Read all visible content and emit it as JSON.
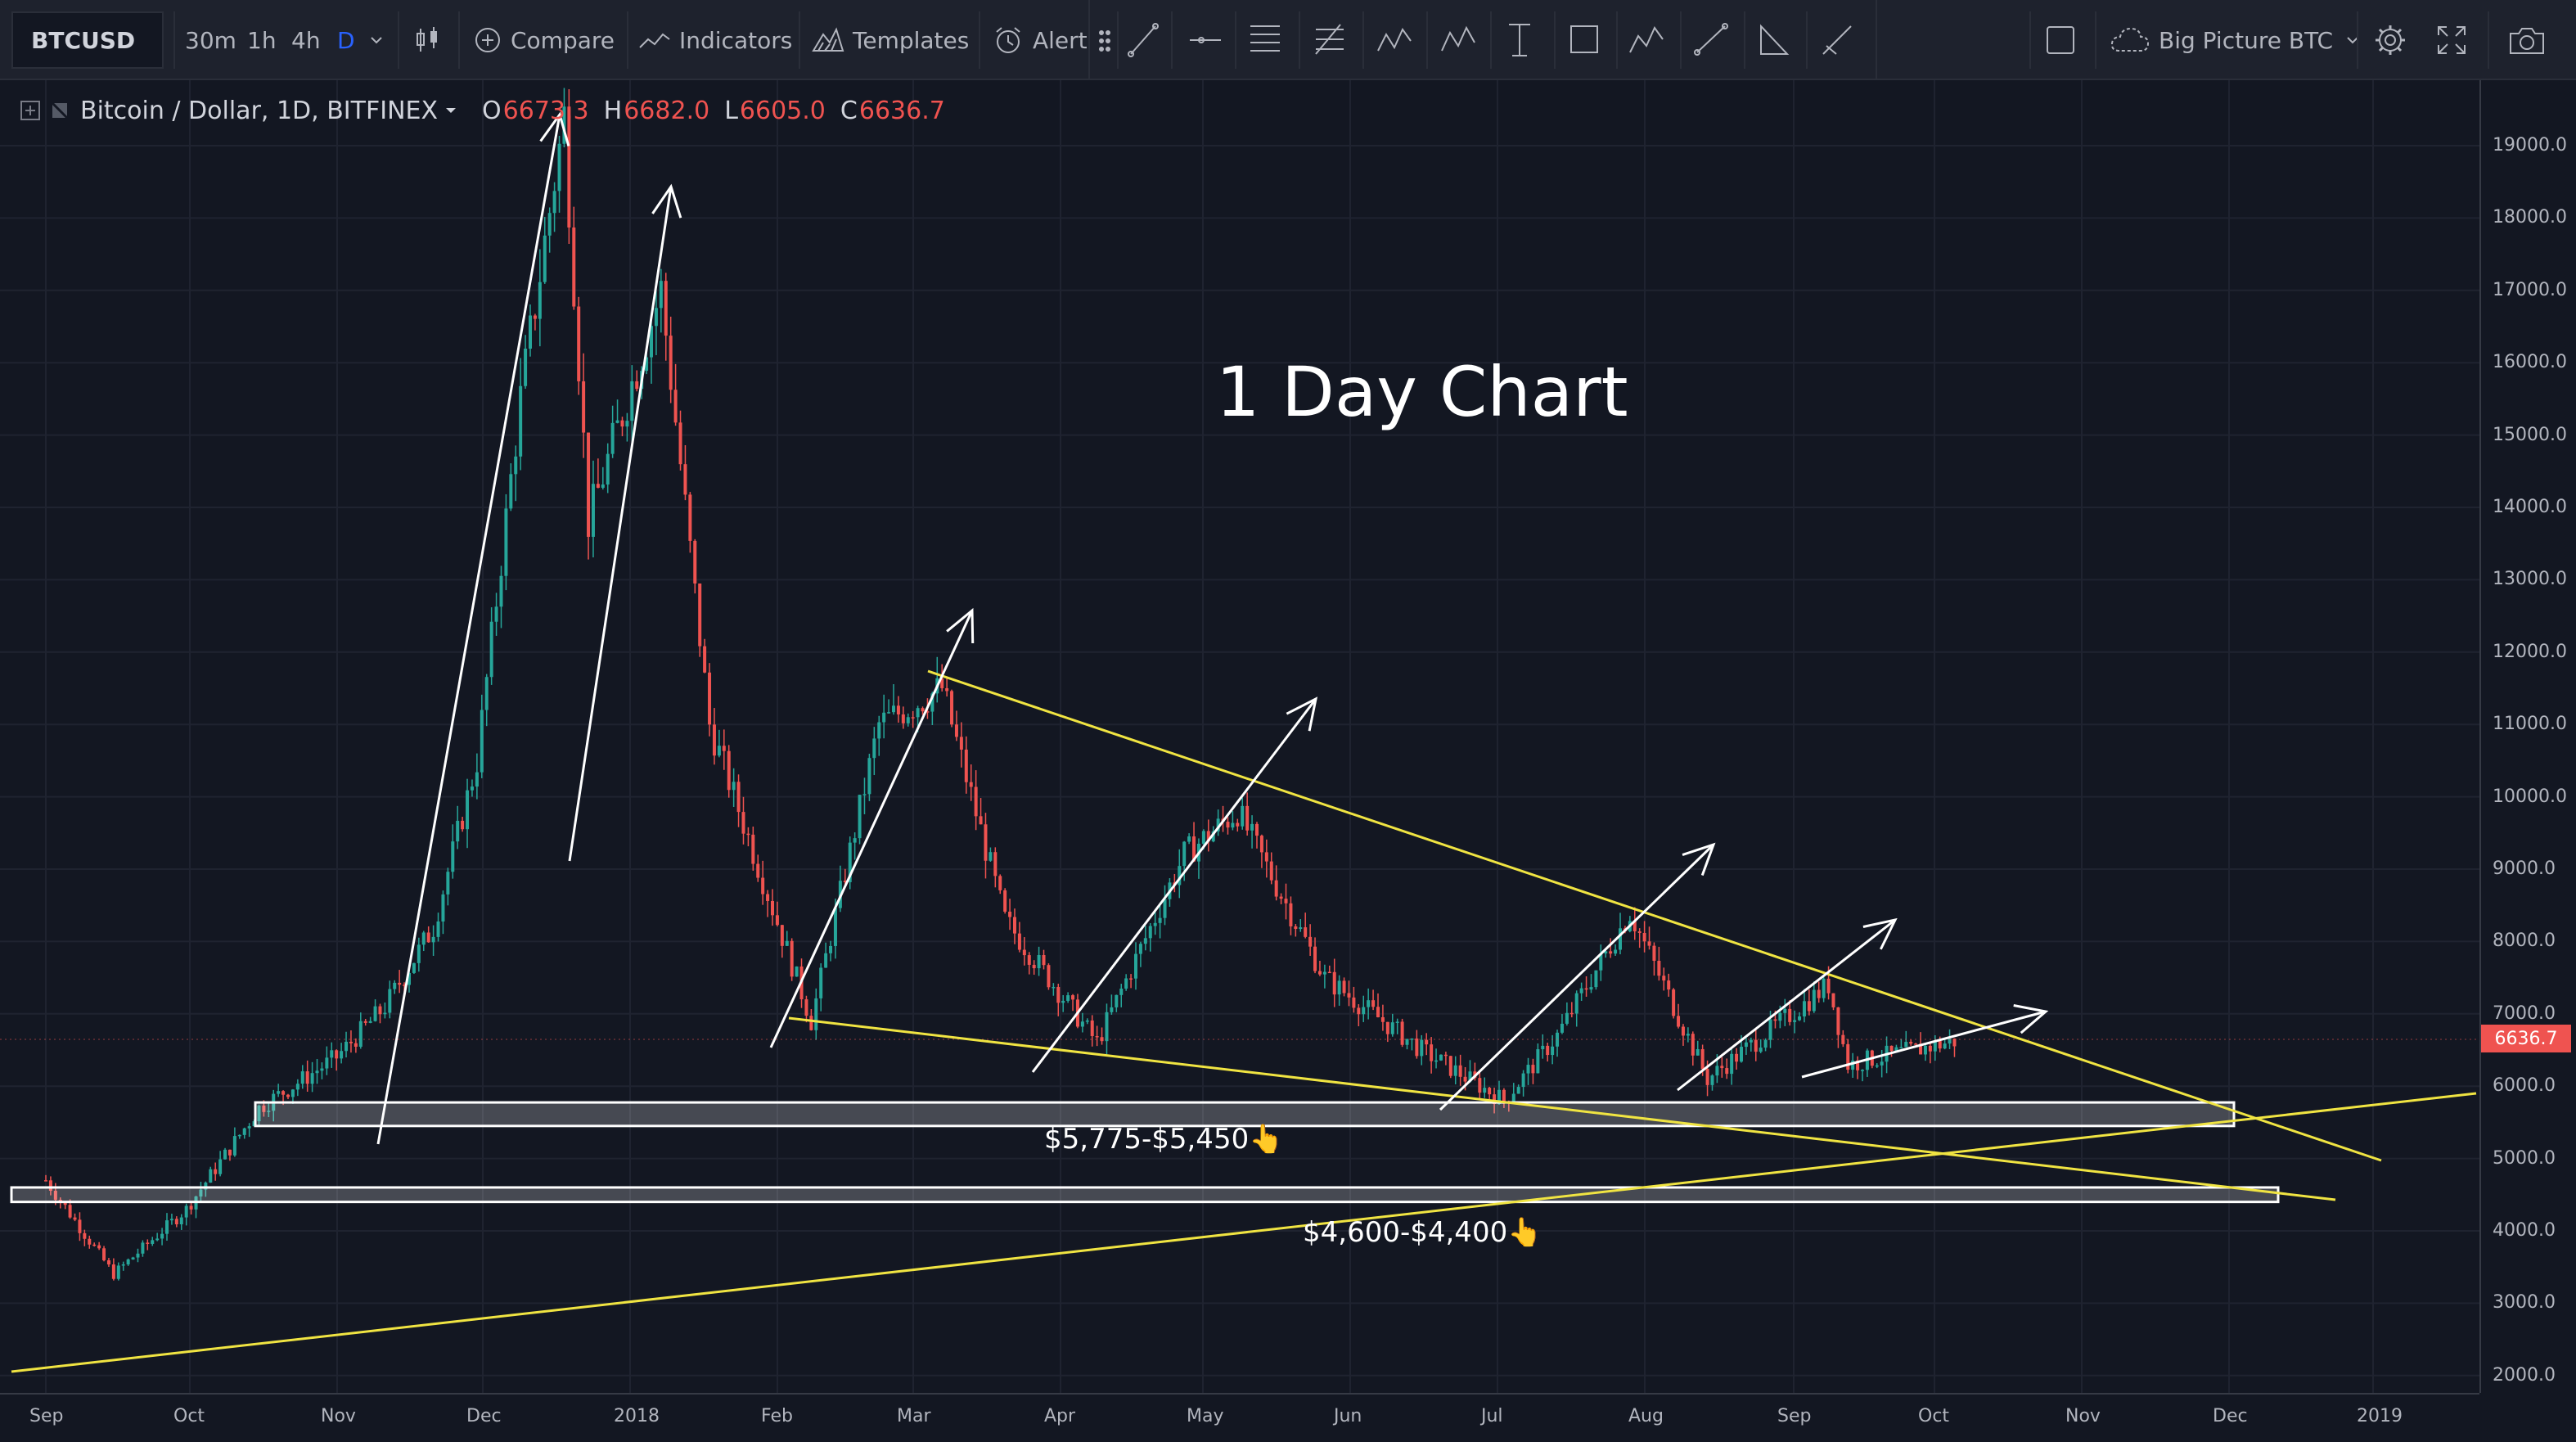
{
  "toolbar": {
    "symbol": "BTCUSD",
    "intervals": [
      "30m",
      "1h",
      "4h",
      "D"
    ],
    "active_interval": "D",
    "compare_label": "Compare",
    "indicators_label": "Indicators",
    "templates_label": "Templates",
    "alert_label": "Alert",
    "layout_name": "Big Picture BTC"
  },
  "legend": {
    "title": "Bitcoin / Dollar, 1D, BITFINEX",
    "open_label": "O",
    "open": "6673.3",
    "high_label": "H",
    "high": "6682.0",
    "low_label": "L",
    "low": "6605.0",
    "close_label": "C",
    "close": "6636.7"
  },
  "annotations": {
    "title": "1 Day Chart",
    "zone1_label": "$5,775-$5,450👆",
    "zone2_label": "$4,600-$4,400👆"
  },
  "price_axis": {
    "ticks": [
      "19000.0",
      "18000.0",
      "17000.0",
      "16000.0",
      "15000.0",
      "14000.0",
      "13000.0",
      "12000.0",
      "11000.0",
      "10000.0",
      "9000.0",
      "8000.0",
      "7000.0",
      "6000.0",
      "5000.0",
      "4000.0",
      "3000.0",
      "2000.0"
    ],
    "current_price": "6636.7"
  },
  "time_axis": {
    "ticks": [
      "Sep",
      "Oct",
      "Nov",
      "Dec",
      "2018",
      "Feb",
      "Mar",
      "Apr",
      "May",
      "Jun",
      "Jul",
      "Aug",
      "Sep",
      "Oct",
      "Nov",
      "Dec",
      "2019"
    ]
  },
  "colors": {
    "background": "#131722",
    "up_candle": "#26a69a",
    "down_candle": "#ef5350",
    "trendline": "#f0e442",
    "arrows": "#ffffff",
    "price_tag": "#ef5350"
  },
  "chart_data": {
    "type": "candlestick",
    "symbol": "BTCUSD",
    "interval": "1D",
    "ylim": [
      2000,
      19600
    ],
    "approx_close_series": [
      [
        "2017-09-01",
        4700
      ],
      [
        "2017-09-15",
        3400
      ],
      [
        "2017-09-30",
        4300
      ],
      [
        "2017-10-15",
        5700
      ],
      [
        "2017-10-31",
        6400
      ],
      [
        "2017-11-10",
        7100
      ],
      [
        "2017-11-20",
        8200
      ],
      [
        "2017-11-29",
        10500
      ],
      [
        "2017-12-08",
        15500
      ],
      [
        "2017-12-17",
        19400
      ],
      [
        "2017-12-22",
        13800
      ],
      [
        "2018-01-06",
        17000
      ],
      [
        "2018-01-16",
        11000
      ],
      [
        "2018-02-06",
        6900
      ],
      [
        "2018-02-20",
        11000
      ],
      [
        "2018-03-05",
        11500
      ],
      [
        "2018-03-18",
        8300
      ],
      [
        "2018-04-06",
        6600
      ],
      [
        "2018-04-24",
        9200
      ],
      [
        "2018-05-05",
        9800
      ],
      [
        "2018-05-23",
        7500
      ],
      [
        "2018-06-12",
        6500
      ],
      [
        "2018-06-29",
        5800
      ],
      [
        "2018-07-10",
        6700
      ],
      [
        "2018-07-25",
        8400
      ],
      [
        "2018-08-10",
        6100
      ],
      [
        "2018-09-04",
        7400
      ],
      [
        "2018-09-08",
        6300
      ],
      [
        "2018-10-01",
        6636.7
      ]
    ],
    "support_zones": [
      {
        "low": 5450,
        "high": 5775
      },
      {
        "low": 4400,
        "high": 4600
      }
    ]
  }
}
